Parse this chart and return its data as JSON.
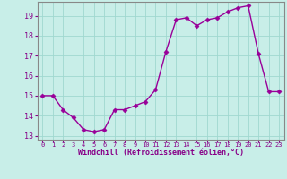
{
  "x": [
    0,
    1,
    2,
    3,
    4,
    5,
    6,
    7,
    8,
    9,
    10,
    11,
    12,
    13,
    14,
    15,
    16,
    17,
    18,
    19,
    20,
    21,
    22,
    23
  ],
  "y": [
    15.0,
    15.0,
    14.3,
    13.9,
    13.3,
    13.2,
    13.3,
    14.3,
    14.3,
    14.5,
    14.7,
    15.3,
    17.2,
    18.8,
    18.9,
    18.5,
    18.8,
    18.9,
    19.2,
    19.4,
    19.5,
    17.1,
    15.2,
    15.2
  ],
  "line_color": "#990099",
  "marker": "D",
  "markersize": 2.5,
  "linewidth": 1.0,
  "xlim": [
    -0.5,
    23.5
  ],
  "ylim": [
    12.8,
    19.7
  ],
  "yticks": [
    13,
    14,
    15,
    16,
    17,
    18,
    19
  ],
  "xticks": [
    0,
    1,
    2,
    3,
    4,
    5,
    6,
    7,
    8,
    9,
    10,
    11,
    12,
    13,
    14,
    15,
    16,
    17,
    18,
    19,
    20,
    21,
    22,
    23
  ],
  "xlabel": "Windchill (Refroidissement éolien,°C)",
  "bg_color": "#c8eee8",
  "grid_color": "#a0d8d0",
  "tick_color": "#880088",
  "label_color": "#880088",
  "spine_color": "#888888"
}
